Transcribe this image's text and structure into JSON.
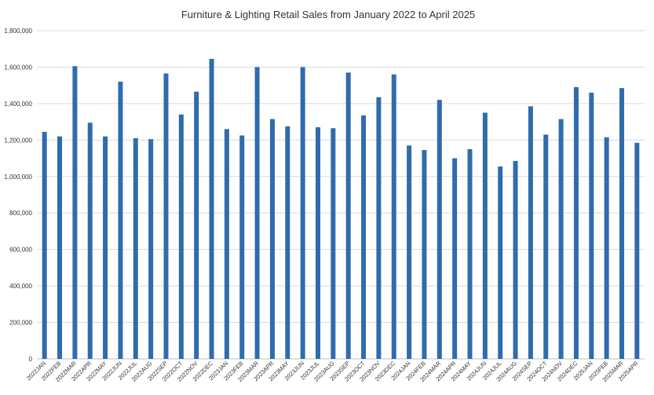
{
  "chart_data": {
    "type": "bar",
    "title": "Furniture & Lighting Retail Sales from January 2022 to April 2025",
    "xlabel": "",
    "ylabel": "",
    "ylim": [
      0,
      1800000
    ],
    "ytick_step": 200000,
    "grid": true,
    "legend": "none",
    "bar_color": "#2e6cad",
    "grid_color": "#d9d9d9",
    "categories": [
      "2022JAN",
      "2022FEB",
      "2022MAR",
      "2022APR",
      "2022MAY",
      "2022JUN",
      "2022JUL",
      "2022AUG",
      "2022SEP",
      "2022OCT",
      "2022NOV",
      "2022DEC",
      "2023JAN",
      "2023FEB",
      "2023MAR",
      "2023APR",
      "2023MAY",
      "2023JUN",
      "2023JUL",
      "2023AUG",
      "2023SEP",
      "2023OCT",
      "2023NOV",
      "2023DEC",
      "2024JAN",
      "2024FEB",
      "2024MAR",
      "2024APR",
      "2024MAY",
      "2024JUN",
      "2024JUL",
      "2024AUG",
      "2024SEP",
      "2024OCT",
      "2024NOV",
      "2024DEC",
      "2025JAN",
      "2025FEB",
      "2025MAR",
      "2025APR"
    ],
    "values": [
      1245000,
      1220000,
      1605000,
      1295000,
      1220000,
      1520000,
      1210000,
      1205000,
      1565000,
      1340000,
      1465000,
      1645000,
      1260000,
      1225000,
      1600000,
      1315000,
      1275000,
      1600000,
      1270000,
      1265000,
      1570000,
      1335000,
      1435000,
      1560000,
      1170000,
      1145000,
      1420000,
      1100000,
      1150000,
      1350000,
      1055000,
      1085000,
      1385000,
      1230000,
      1315000,
      1490000,
      1460000,
      1215000,
      1485000,
      1185000
    ]
  }
}
